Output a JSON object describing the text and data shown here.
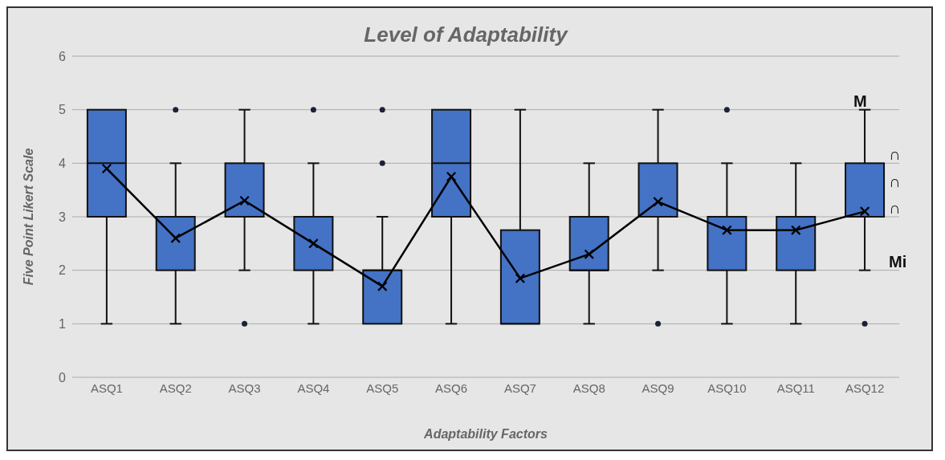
{
  "chart_data": {
    "type": "box",
    "title": "Level of Adaptability",
    "xlabel": "Adaptability Factors",
    "ylabel": "Five Point Likert Scale",
    "categories": [
      "ASQ1",
      "ASQ2",
      "ASQ3",
      "ASQ4",
      "ASQ5",
      "ASQ6",
      "ASQ7",
      "ASQ8",
      "ASQ9",
      "ASQ10",
      "ASQ11",
      "ASQ12"
    ],
    "series": [
      {
        "color": "#4472c4",
        "boxes": [
          {
            "low": 1,
            "q1": 3,
            "median": 4,
            "q3": 5,
            "high": 5
          },
          {
            "low": 1,
            "q1": 2,
            "median": 3,
            "q3": 3,
            "high": 4,
            "outliers": [
              5
            ]
          },
          {
            "low": 2,
            "q1": 3,
            "median": 3,
            "q3": 4,
            "high": 5,
            "outliers": [
              1
            ]
          },
          {
            "low": 1,
            "q1": 2,
            "median": 3,
            "q3": 3,
            "high": 4,
            "outliers": [
              5
            ]
          },
          {
            "low": 1,
            "q1": 1,
            "median": 2,
            "q3": 2,
            "high": 3,
            "outliers": [
              4,
              5
            ]
          },
          {
            "low": 1,
            "q1": 3,
            "median": 4,
            "q3": 5,
            "high": 5
          },
          {
            "low": 1,
            "q1": 1,
            "median": 1,
            "q3": 2.75,
            "high": 5
          },
          {
            "low": 1,
            "q1": 2,
            "median": 2,
            "q3": 3,
            "high": 4
          },
          {
            "low": 2,
            "q1": 3,
            "median": 3,
            "q3": 4,
            "high": 5,
            "outliers": [
              1
            ]
          },
          {
            "low": 1,
            "q1": 2,
            "median": 3,
            "q3": 3,
            "high": 4,
            "outliers": [
              5
            ]
          },
          {
            "low": 1,
            "q1": 2,
            "median": 3,
            "q3": 3,
            "high": 4
          },
          {
            "low": 2,
            "q1": 3,
            "median": 3,
            "q3": 4,
            "high": 5,
            "outliers": [
              1
            ]
          }
        ]
      },
      {
        "type": "line",
        "color": "#000000",
        "marker": "cross",
        "values": [
          3.9,
          2.6,
          3.3,
          2.5,
          1.7,
          3.75,
          1.85,
          2.3,
          3.28,
          2.75,
          2.75,
          3.1
        ]
      }
    ],
    "annotations": [
      {
        "text": "M",
        "x": "ASQ12",
        "y": 5
      },
      {
        "text": "∩",
        "x": "ASQ12",
        "y": 4
      },
      {
        "text": "∩",
        "x": "ASQ12",
        "y": 3
      },
      {
        "text": "∩",
        "x": "ASQ12",
        "y": 3.5
      },
      {
        "text": "Mi",
        "x": "ASQ12",
        "y": 2
      }
    ],
    "ylim": [
      0,
      6
    ],
    "yticks": [
      0,
      1,
      2,
      3,
      4,
      5,
      6
    ],
    "grid": "y",
    "legend": false
  }
}
